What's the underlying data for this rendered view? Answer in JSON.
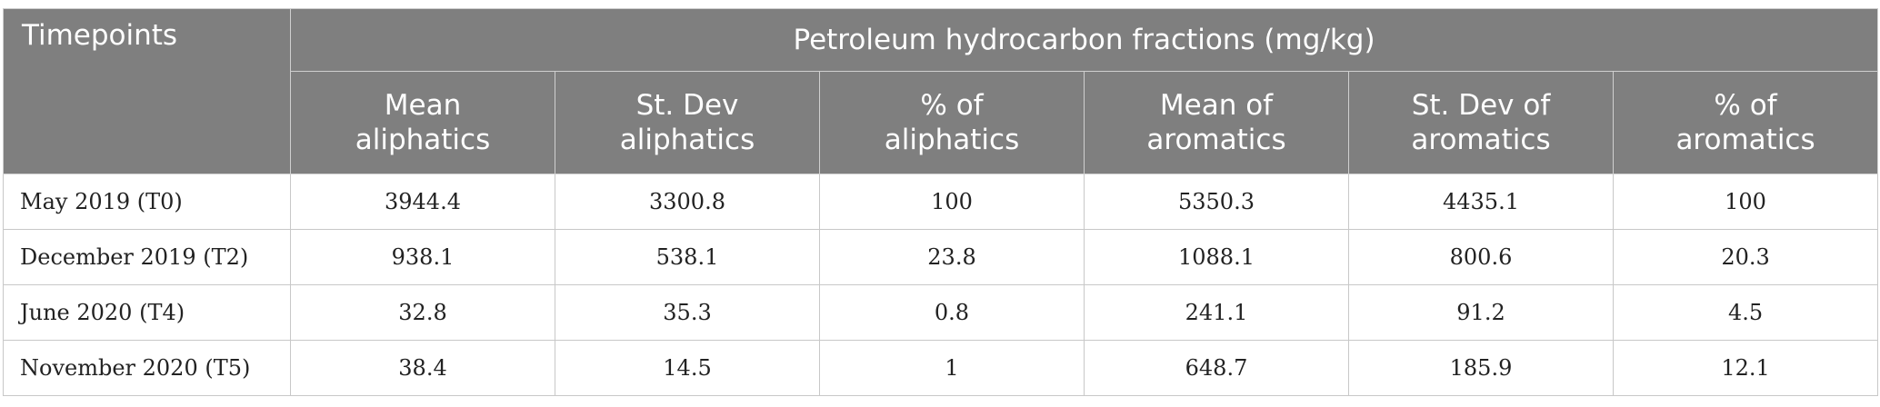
{
  "table": {
    "header": {
      "timepoints": "Timepoints",
      "group": "Petroleum hydrocarbon fractions (mg/kg)",
      "columns": [
        "Mean\naliphatics",
        "St. Dev\naliphatics",
        "% of\naliphatics",
        "Mean of\naromatics",
        "St. Dev of\naromatics",
        "% of\naromatics"
      ]
    },
    "rows": [
      [
        "May 2019 (T0)",
        3944.4,
        3300.8,
        100,
        5350.3,
        4435.1,
        100
      ],
      [
        "December 2019 (T2)",
        938.1,
        538.1,
        23.8,
        1088.1,
        800.6,
        20.3
      ],
      [
        "June 2020 (T4)",
        32.8,
        35.3,
        0.8,
        241.1,
        91.2,
        4.5
      ],
      [
        "November 2020 (T5)",
        38.4,
        14.5,
        1,
        648.7,
        185.9,
        12.1
      ]
    ]
  }
}
